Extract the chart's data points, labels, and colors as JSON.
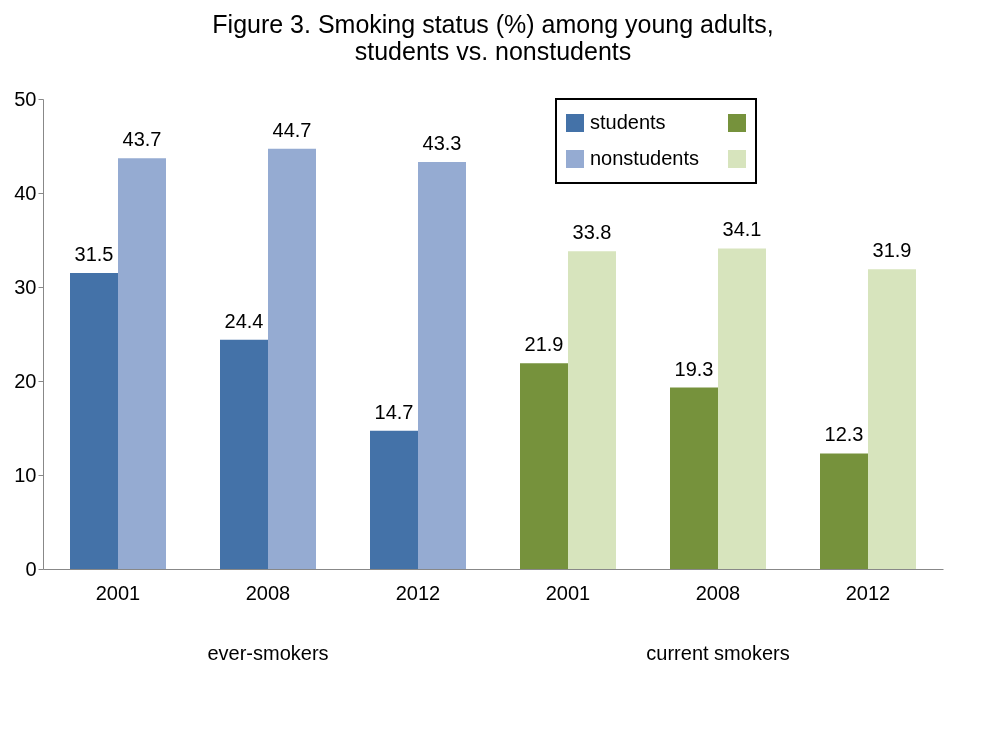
{
  "chart_data": {
    "type": "bar",
    "title": "Figure 3. Smoking status (%) among young adults,\nstudents vs. nonstudents",
    "categories": [
      "2001",
      "2008",
      "2012",
      "2001",
      "2008",
      "2012"
    ],
    "series": [
      {
        "name": "students",
        "colors": [
          "#4472a8",
          "#4472a8",
          "#4472a8",
          "#76923c",
          "#76923c",
          "#76923c"
        ],
        "values": [
          31.5,
          24.4,
          14.7,
          21.9,
          19.3,
          12.3
        ]
      },
      {
        "name": "nonstudents",
        "colors": [
          "#95abd2",
          "#95abd2",
          "#95abd2",
          "#d7e4bd",
          "#d7e4bd",
          "#d7e4bd"
        ],
        "values": [
          43.7,
          44.7,
          43.3,
          33.8,
          34.1,
          31.9
        ]
      }
    ],
    "annotations": [
      "ever-smokers",
      "current smokers"
    ],
    "ylim": [
      0,
      50
    ],
    "yticks": [
      0,
      10,
      20,
      30,
      40,
      50
    ],
    "data_labels": true,
    "legend": "top right"
  }
}
